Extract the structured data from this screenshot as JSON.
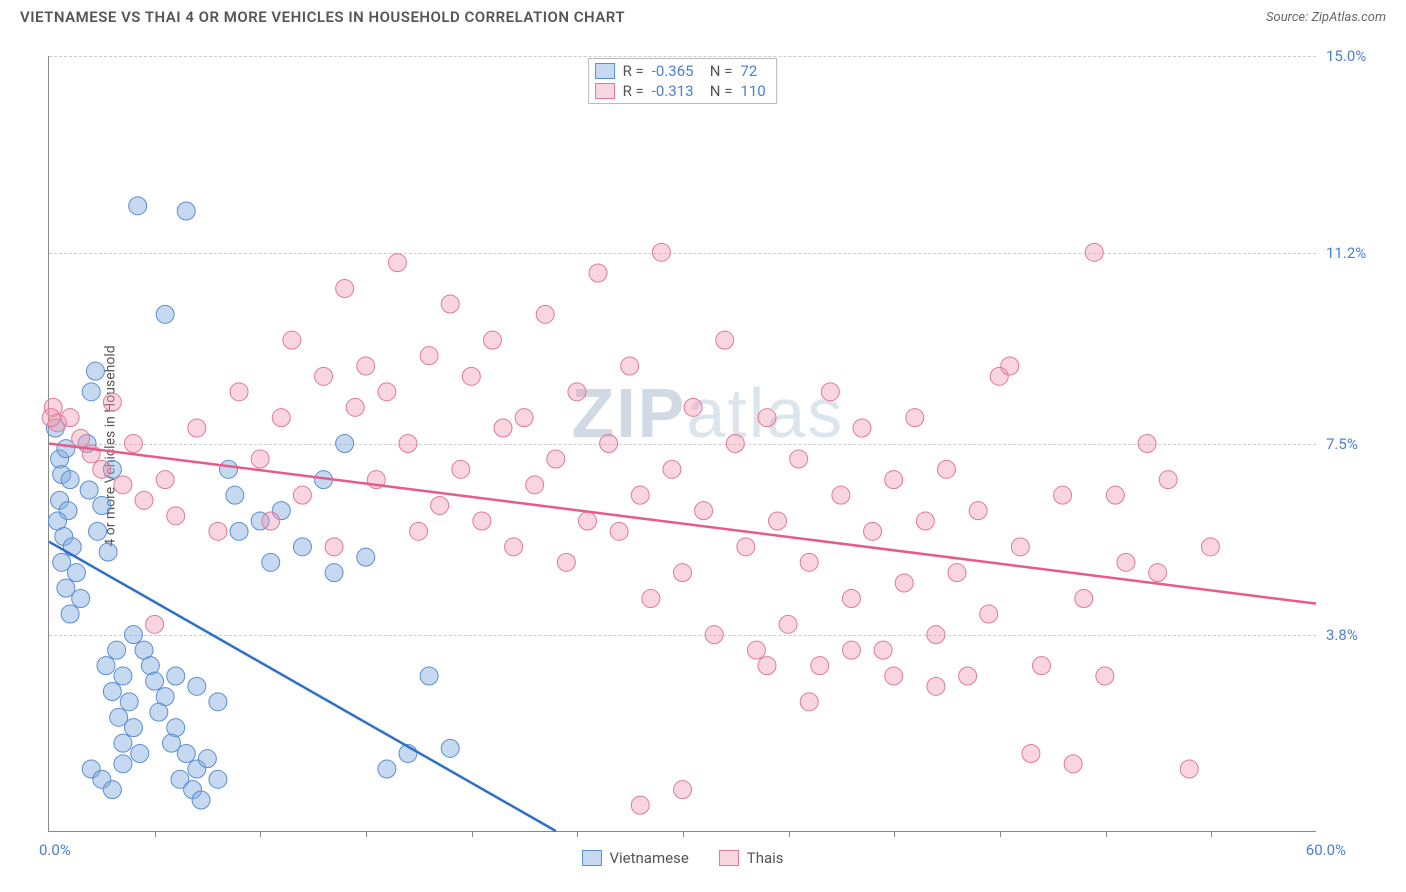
{
  "header": {
    "title": "VIETNAMESE VS THAI 4 OR MORE VEHICLES IN HOUSEHOLD CORRELATION CHART",
    "source_label": "Source: ",
    "source_value": "ZipAtlas.com"
  },
  "ylabel": "4 or more Vehicles in Household",
  "watermark_prefix": "ZIP",
  "watermark_suffix": "atlas",
  "chart": {
    "type": "scatter",
    "xlim": [
      0,
      60
    ],
    "ylim": [
      0,
      15
    ],
    "background_color": "#ffffff",
    "grid_color": "#cccccc",
    "axis_color": "#888888",
    "yticks": [
      {
        "v": 3.8,
        "label": "3.8%"
      },
      {
        "v": 7.5,
        "label": "7.5%"
      },
      {
        "v": 11.2,
        "label": "11.2%"
      },
      {
        "v": 15.0,
        "label": "15.0%"
      }
    ],
    "xticks": [
      5,
      10,
      15,
      20,
      25,
      30,
      35,
      40,
      45,
      50,
      55
    ],
    "xaxis_min_label": "0.0%",
    "xaxis_max_label": "60.0%",
    "series": [
      {
        "name": "Vietnamese",
        "fill": "rgba(130,170,225,0.45)",
        "stroke": "#5a8fd0",
        "line_color": "#2d6fc9",
        "R": "-0.365",
        "N": "72",
        "trend": {
          "x1": 0,
          "y1": 5.6,
          "x2": 24,
          "y2": 0
        },
        "points": [
          [
            0.3,
            7.8
          ],
          [
            0.5,
            7.2
          ],
          [
            0.6,
            6.9
          ],
          [
            0.8,
            7.4
          ],
          [
            0.5,
            6.4
          ],
          [
            0.9,
            6.2
          ],
          [
            1.0,
            6.8
          ],
          [
            0.4,
            6.0
          ],
          [
            0.7,
            5.7
          ],
          [
            1.1,
            5.5
          ],
          [
            0.6,
            5.2
          ],
          [
            1.3,
            5.0
          ],
          [
            0.8,
            4.7
          ],
          [
            1.5,
            4.5
          ],
          [
            1.0,
            4.2
          ],
          [
            1.8,
            7.5
          ],
          [
            2.0,
            8.5
          ],
          [
            2.2,
            8.9
          ],
          [
            1.9,
            6.6
          ],
          [
            2.5,
            6.3
          ],
          [
            2.3,
            5.8
          ],
          [
            2.8,
            5.4
          ],
          [
            3.0,
            7.0
          ],
          [
            3.2,
            3.5
          ],
          [
            2.7,
            3.2
          ],
          [
            3.5,
            3.0
          ],
          [
            3.0,
            2.7
          ],
          [
            3.8,
            2.5
          ],
          [
            3.3,
            2.2
          ],
          [
            4.0,
            2.0
          ],
          [
            3.5,
            1.7
          ],
          [
            4.3,
            1.5
          ],
          [
            4.0,
            3.8
          ],
          [
            4.5,
            3.5
          ],
          [
            4.8,
            3.2
          ],
          [
            5.0,
            2.9
          ],
          [
            5.5,
            2.6
          ],
          [
            5.2,
            2.3
          ],
          [
            6.0,
            2.0
          ],
          [
            5.8,
            1.7
          ],
          [
            6.5,
            1.5
          ],
          [
            6.2,
            1.0
          ],
          [
            7.0,
            1.2
          ],
          [
            6.8,
            0.8
          ],
          [
            7.5,
            1.4
          ],
          [
            7.2,
            0.6
          ],
          [
            8.0,
            1.0
          ],
          [
            4.2,
            12.1
          ],
          [
            6.5,
            12.0
          ],
          [
            8.5,
            7.0
          ],
          [
            8.8,
            6.5
          ],
          [
            9.0,
            5.8
          ],
          [
            10.0,
            6.0
          ],
          [
            10.5,
            5.2
          ],
          [
            11.0,
            6.2
          ],
          [
            12.0,
            5.5
          ],
          [
            13.0,
            6.8
          ],
          [
            13.5,
            5.0
          ],
          [
            14.0,
            7.5
          ],
          [
            15.0,
            5.3
          ],
          [
            16.0,
            1.2
          ],
          [
            17.0,
            1.5
          ],
          [
            18.0,
            3.0
          ],
          [
            19.0,
            1.6
          ],
          [
            5.5,
            10.0
          ],
          [
            6.0,
            3.0
          ],
          [
            7.0,
            2.8
          ],
          [
            8.0,
            2.5
          ],
          [
            2.0,
            1.2
          ],
          [
            2.5,
            1.0
          ],
          [
            3.0,
            0.8
          ],
          [
            3.5,
            1.3
          ]
        ]
      },
      {
        "name": "Thais",
        "fill": "rgba(240,150,175,0.40)",
        "stroke": "#e07a9a",
        "line_color": "#e85a88",
        "R": "-0.313",
        "N": "110",
        "trend": {
          "x1": 0,
          "y1": 7.5,
          "x2": 60,
          "y2": 4.4
        },
        "points": [
          [
            0.2,
            8.2
          ],
          [
            0.4,
            7.9
          ],
          [
            1.0,
            8.0
          ],
          [
            1.5,
            7.6
          ],
          [
            2.0,
            7.3
          ],
          [
            2.5,
            7.0
          ],
          [
            3.0,
            8.3
          ],
          [
            3.5,
            6.7
          ],
          [
            4.0,
            7.5
          ],
          [
            4.5,
            6.4
          ],
          [
            5.0,
            4.0
          ],
          [
            5.5,
            6.8
          ],
          [
            6.0,
            6.1
          ],
          [
            7.0,
            7.8
          ],
          [
            8.0,
            5.8
          ],
          [
            9.0,
            8.5
          ],
          [
            10.0,
            7.2
          ],
          [
            10.5,
            6.0
          ],
          [
            11.0,
            8.0
          ],
          [
            11.5,
            9.5
          ],
          [
            12.0,
            6.5
          ],
          [
            13.0,
            8.8
          ],
          [
            13.5,
            5.5
          ],
          [
            14.0,
            10.5
          ],
          [
            14.5,
            8.2
          ],
          [
            15.0,
            9.0
          ],
          [
            15.5,
            6.8
          ],
          [
            16.0,
            8.5
          ],
          [
            16.5,
            11.0
          ],
          [
            17.0,
            7.5
          ],
          [
            17.5,
            5.8
          ],
          [
            18.0,
            9.2
          ],
          [
            18.5,
            6.3
          ],
          [
            19.0,
            10.2
          ],
          [
            19.5,
            7.0
          ],
          [
            20.0,
            8.8
          ],
          [
            20.5,
            6.0
          ],
          [
            21.0,
            9.5
          ],
          [
            21.5,
            7.8
          ],
          [
            22.0,
            5.5
          ],
          [
            22.5,
            8.0
          ],
          [
            23.0,
            6.7
          ],
          [
            23.5,
            10.0
          ],
          [
            24.0,
            7.2
          ],
          [
            24.5,
            5.2
          ],
          [
            25.0,
            8.5
          ],
          [
            25.5,
            6.0
          ],
          [
            26.0,
            10.8
          ],
          [
            26.5,
            7.5
          ],
          [
            27.0,
            5.8
          ],
          [
            27.5,
            9.0
          ],
          [
            28.0,
            6.5
          ],
          [
            28.5,
            4.5
          ],
          [
            29.0,
            11.2
          ],
          [
            29.5,
            7.0
          ],
          [
            30.0,
            5.0
          ],
          [
            30.5,
            8.2
          ],
          [
            31.0,
            6.2
          ],
          [
            31.5,
            3.8
          ],
          [
            32.0,
            9.5
          ],
          [
            32.5,
            7.5
          ],
          [
            33.0,
            5.5
          ],
          [
            33.5,
            3.5
          ],
          [
            34.0,
            8.0
          ],
          [
            34.5,
            6.0
          ],
          [
            35.0,
            4.0
          ],
          [
            35.5,
            7.2
          ],
          [
            36.0,
            5.2
          ],
          [
            36.5,
            3.2
          ],
          [
            37.0,
            8.5
          ],
          [
            37.5,
            6.5
          ],
          [
            38.0,
            4.5
          ],
          [
            38.5,
            7.8
          ],
          [
            39.0,
            5.8
          ],
          [
            39.5,
            3.5
          ],
          [
            40.0,
            6.8
          ],
          [
            40.5,
            4.8
          ],
          [
            41.0,
            8.0
          ],
          [
            41.5,
            6.0
          ],
          [
            42.0,
            3.8
          ],
          [
            42.5,
            7.0
          ],
          [
            43.0,
            5.0
          ],
          [
            43.5,
            3.0
          ],
          [
            44.0,
            6.2
          ],
          [
            44.5,
            4.2
          ],
          [
            45.0,
            8.8
          ],
          [
            46.0,
            5.5
          ],
          [
            47.0,
            3.2
          ],
          [
            48.0,
            6.5
          ],
          [
            49.0,
            4.5
          ],
          [
            50.0,
            3.0
          ],
          [
            51.0,
            5.2
          ],
          [
            52.0,
            7.5
          ],
          [
            45.5,
            9.0
          ],
          [
            46.5,
            1.5
          ],
          [
            48.5,
            1.3
          ],
          [
            49.5,
            11.2
          ],
          [
            50.5,
            6.5
          ],
          [
            52.5,
            5.0
          ],
          [
            53.0,
            6.8
          ],
          [
            54.0,
            1.2
          ],
          [
            55.0,
            5.5
          ],
          [
            30.0,
            0.8
          ],
          [
            28.0,
            0.5
          ],
          [
            40.0,
            3.0
          ],
          [
            42.0,
            2.8
          ],
          [
            38.0,
            3.5
          ],
          [
            36.0,
            2.5
          ],
          [
            34.0,
            3.2
          ],
          [
            0.1,
            8.0
          ]
        ]
      }
    ],
    "legend_labels": {
      "R": "R =",
      "N": "N ="
    }
  }
}
